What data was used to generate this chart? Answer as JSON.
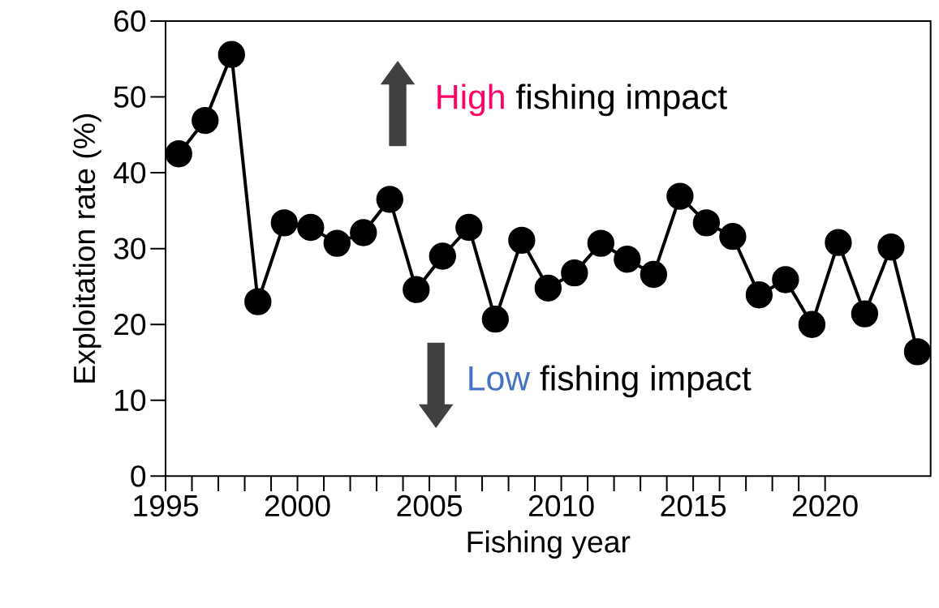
{
  "chart_data": {
    "type": "line",
    "xlabel": "Fishing year",
    "ylabel": "Exploitation rate (%)",
    "annotations": [
      "High",
      "fishing impact",
      "Low",
      "fishing impact"
    ],
    "x": [
      1995.5,
      1996.5,
      1997.5,
      1998.5,
      1999.5,
      2000.5,
      2001.5,
      2002.5,
      2003.5,
      2004.5,
      2005.5,
      2006.5,
      2007.5,
      2008.5,
      2009.5,
      2010.5,
      2011.5,
      2012.5,
      2013.5,
      2014.5,
      2015.5,
      2016.5,
      2017.5,
      2018.5,
      2019.5,
      2020.5,
      2021.5,
      2022.5,
      2023.5
    ],
    "series": [
      {
        "color": "#000000",
        "values": [
          42.5,
          46.9,
          55.6,
          23.0,
          33.4,
          32.8,
          30.7,
          32.1,
          36.5,
          24.6,
          29.0,
          32.8,
          20.7,
          31.1,
          24.8,
          26.8,
          30.7,
          28.6,
          26.6,
          36.9,
          33.4,
          31.6,
          23.9,
          25.9,
          20.0,
          30.8,
          21.4,
          30.2,
          16.4
        ]
      }
    ],
    "xlim": [
      1995,
      2024
    ],
    "ylim": [
      0,
      60
    ],
    "xticks": [
      1995,
      2000,
      2005,
      2010,
      2015,
      2020
    ],
    "yticks": [
      0,
      10,
      20,
      30,
      40,
      50,
      60
    ],
    "grid": false,
    "marker": "circle",
    "line_style": "solid"
  }
}
